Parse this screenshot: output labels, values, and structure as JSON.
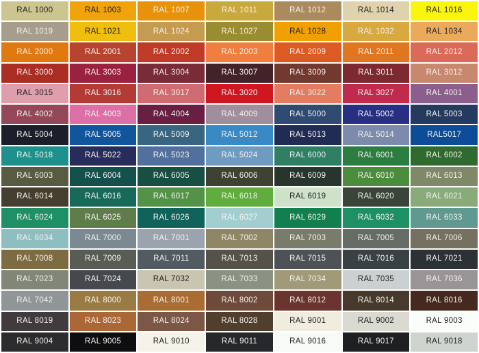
{
  "page": {
    "background": "#ffffff",
    "grid_columns": 7,
    "grid_rows": 17,
    "gap_color": "#ffffff"
  },
  "text_colors": {
    "dark": "#222222",
    "light": "#F4F2EE"
  },
  "chart_data": {
    "type": "table",
    "title": "RAL colour chart",
    "rows": [
      [
        {
          "code": "RAL 1000",
          "bg": "#CCC58F",
          "fg": "dark"
        },
        {
          "code": "RAL 1003",
          "bg": "#F0A30A",
          "fg": "dark"
        },
        {
          "code": "RAL 1007",
          "bg": "#E8920C",
          "fg": "light"
        },
        {
          "code": "RAL 1011",
          "bg": "#C9A83C",
          "fg": "light"
        },
        {
          "code": "RAL 1012",
          "bg": "#AB8A5E",
          "fg": "light"
        },
        {
          "code": "RAL 1014",
          "bg": "#DFD3AD",
          "fg": "dark"
        },
        {
          "code": "RAL 1016",
          "bg": "#FAF50C",
          "fg": "dark"
        }
      ],
      [
        {
          "code": "RAL 1019",
          "bg": "#A69D8D",
          "fg": "light"
        },
        {
          "code": "RAL 1021",
          "bg": "#F0BE0F",
          "fg": "dark"
        },
        {
          "code": "RAL 1024",
          "bg": "#C49B51",
          "fg": "light"
        },
        {
          "code": "RAL 1027",
          "bg": "#9A8C30",
          "fg": "light"
        },
        {
          "code": "RAL 1028",
          "bg": "#F0A000",
          "fg": "dark"
        },
        {
          "code": "RAL 1032",
          "bg": "#D7A93F",
          "fg": "light"
        },
        {
          "code": "RAL 1034",
          "bg": "#EBA95C",
          "fg": "dark"
        }
      ],
      [
        {
          "code": "RAL 2000",
          "bg": "#E0790F",
          "fg": "light"
        },
        {
          "code": "RAL 2001",
          "bg": "#B8432F",
          "fg": "light"
        },
        {
          "code": "RAL 2002",
          "bg": "#C03A28",
          "fg": "light"
        },
        {
          "code": "RAL 2003",
          "bg": "#F07E3F",
          "fg": "light"
        },
        {
          "code": "RAL 2009",
          "bg": "#DC5B23",
          "fg": "light"
        },
        {
          "code": "RAL 2011",
          "bg": "#E0761F",
          "fg": "light"
        },
        {
          "code": "RAL 2012",
          "bg": "#DB6A58",
          "fg": "light"
        }
      ],
      [
        {
          "code": "RAL 3000",
          "bg": "#AB2E25",
          "fg": "light"
        },
        {
          "code": "RAL 3003",
          "bg": "#9A2140",
          "fg": "light"
        },
        {
          "code": "RAL 3004",
          "bg": "#7A2B38",
          "fg": "light"
        },
        {
          "code": "RAL 3007",
          "bg": "#432329",
          "fg": "light"
        },
        {
          "code": "RAL 3009",
          "bg": "#71392F",
          "fg": "light"
        },
        {
          "code": "RAL 3011",
          "bg": "#7C2A30",
          "fg": "light"
        },
        {
          "code": "RAL 3012",
          "bg": "#C8886D",
          "fg": "light"
        }
      ],
      [
        {
          "code": "RAL 3015",
          "bg": "#DE9EAC",
          "fg": "dark"
        },
        {
          "code": "RAL 3016",
          "bg": "#B23B35",
          "fg": "light"
        },
        {
          "code": "RAL 3017",
          "bg": "#D16B72",
          "fg": "light"
        },
        {
          "code": "RAL 3020",
          "bg": "#CE1721",
          "fg": "light"
        },
        {
          "code": "RAL 3022",
          "bg": "#E37C60",
          "fg": "light"
        },
        {
          "code": "RAL 3027",
          "bg": "#C02A4D",
          "fg": "light"
        },
        {
          "code": "RAL 4001",
          "bg": "#8B5E8E",
          "fg": "light"
        }
      ],
      [
        {
          "code": "RAL 4002",
          "bg": "#944758",
          "fg": "light"
        },
        {
          "code": "RAL 4003",
          "bg": "#DC6FA6",
          "fg": "light"
        },
        {
          "code": "RAL 4004",
          "bg": "#681F43",
          "fg": "light"
        },
        {
          "code": "RAL 4009",
          "bg": "#A18E9C",
          "fg": "light"
        },
        {
          "code": "RAL 5000",
          "bg": "#2F4B71",
          "fg": "light"
        },
        {
          "code": "RAL 5002",
          "bg": "#272F85",
          "fg": "light"
        },
        {
          "code": "RAL 5003",
          "bg": "#243A5F",
          "fg": "light"
        }
      ],
      [
        {
          "code": "RAL 5004",
          "bg": "#1A1F2B",
          "fg": "light"
        },
        {
          "code": "RAL 5005",
          "bg": "#11569D",
          "fg": "light"
        },
        {
          "code": "RAL 5009",
          "bg": "#386680",
          "fg": "light"
        },
        {
          "code": "RAL 5012",
          "bg": "#3989C5",
          "fg": "light"
        },
        {
          "code": "RAL 5013",
          "bg": "#202C54",
          "fg": "light"
        },
        {
          "code": "RAL 5014",
          "bg": "#7C8BAC",
          "fg": "light"
        },
        {
          "code": "RAL5017",
          "bg": "#0D4D97",
          "fg": "light"
        }
      ],
      [
        {
          "code": "RAL 5018",
          "bg": "#1E918C",
          "fg": "light"
        },
        {
          "code": "RAL 5022",
          "bg": "#282C5A",
          "fg": "light"
        },
        {
          "code": "RAL 5023",
          "bg": "#52709D",
          "fg": "light"
        },
        {
          "code": "RAL 5024",
          "bg": "#6F9BC1",
          "fg": "light"
        },
        {
          "code": "RAL 6000",
          "bg": "#2F7F63",
          "fg": "light"
        },
        {
          "code": "RAL 6001",
          "bg": "#2B7D40",
          "fg": "light"
        },
        {
          "code": "RAL 6002",
          "bg": "#2F6A2F",
          "fg": "light"
        }
      ],
      [
        {
          "code": "RAL 6003",
          "bg": "#565B41",
          "fg": "light"
        },
        {
          "code": "RAL 6004",
          "bg": "#14504D",
          "fg": "light"
        },
        {
          "code": "RAL 6005",
          "bg": "#175043",
          "fg": "light"
        },
        {
          "code": "RAL 6006",
          "bg": "#3D4233",
          "fg": "light"
        },
        {
          "code": "RAL 6009",
          "bg": "#27352C",
          "fg": "light"
        },
        {
          "code": "RAL 6010",
          "bg": "#4C8C3D",
          "fg": "light"
        },
        {
          "code": "RAL 6013",
          "bg": "#7F8968",
          "fg": "light"
        }
      ],
      [
        {
          "code": "RAL 6014",
          "bg": "#463F2F",
          "fg": "light"
        },
        {
          "code": "RAL 6016",
          "bg": "#17695A",
          "fg": "light"
        },
        {
          "code": "RAL 6017",
          "bg": "#539348",
          "fg": "light"
        },
        {
          "code": "RAL 6018",
          "bg": "#5FAD3D",
          "fg": "light"
        },
        {
          "code": "RAL 6019",
          "bg": "#CEE1C9",
          "fg": "dark"
        },
        {
          "code": "RAL 6020",
          "bg": "#3A453A",
          "fg": "light"
        },
        {
          "code": "RAL 6021",
          "bg": "#89AB7A",
          "fg": "light"
        }
      ],
      [
        {
          "code": "RAL 6024",
          "bg": "#1F9066",
          "fg": "light"
        },
        {
          "code": "RAL 6025",
          "bg": "#5F7C4B",
          "fg": "light"
        },
        {
          "code": "RAL 6026",
          "bg": "#0F635B",
          "fg": "light"
        },
        {
          "code": "RAL 6027",
          "bg": "#A2CED0",
          "fg": "light"
        },
        {
          "code": "RAL 6029",
          "bg": "#12804E",
          "fg": "light"
        },
        {
          "code": "RAL 6032",
          "bg": "#1E9164",
          "fg": "light"
        },
        {
          "code": "RAL 6033",
          "bg": "#5F998F",
          "fg": "light"
        }
      ],
      [
        {
          "code": "RAL 6034",
          "bg": "#8FBEC1",
          "fg": "light"
        },
        {
          "code": "RAL 7000",
          "bg": "#7B8992",
          "fg": "light"
        },
        {
          "code": "RAL 7001",
          "bg": "#9AA3AE",
          "fg": "light"
        },
        {
          "code": "RAL 7002",
          "bg": "#8E8665",
          "fg": "light"
        },
        {
          "code": "RAL 7003",
          "bg": "#797C6A",
          "fg": "light"
        },
        {
          "code": "RAL 7005",
          "bg": "#656C63",
          "fg": "light"
        },
        {
          "code": "RAL 7006",
          "bg": "#75705F",
          "fg": "light"
        }
      ],
      [
        {
          "code": "RAL 7008",
          "bg": "#7D6B42",
          "fg": "light"
        },
        {
          "code": "RAL 7009",
          "bg": "#575C54",
          "fg": "light"
        },
        {
          "code": "RAL 7011",
          "bg": "#525A62",
          "fg": "light"
        },
        {
          "code": "RAL 7013",
          "bg": "#555349",
          "fg": "light"
        },
        {
          "code": "RAL 7015",
          "bg": "#4E5257",
          "fg": "light"
        },
        {
          "code": "RAL 7016",
          "bg": "#3A4145",
          "fg": "light"
        },
        {
          "code": "RAL 7021",
          "bg": "#2B3135",
          "fg": "light"
        }
      ],
      [
        {
          "code": "RAL 7023",
          "bg": "#818677",
          "fg": "light"
        },
        {
          "code": "RAL 7024",
          "bg": "#45494E",
          "fg": "light"
        },
        {
          "code": "RAL 7032",
          "bg": "#CAC5B0",
          "fg": "dark"
        },
        {
          "code": "RAL 7033",
          "bg": "#899283",
          "fg": "light"
        },
        {
          "code": "RAL 7034",
          "bg": "#A19977",
          "fg": "light"
        },
        {
          "code": "RAL 7035",
          "bg": "#CBD1D3",
          "fg": "dark"
        },
        {
          "code": "RAL 7036",
          "bg": "#999596",
          "fg": "light"
        }
      ],
      [
        {
          "code": "RAL 7042",
          "bg": "#8F9697",
          "fg": "light"
        },
        {
          "code": "RAL 8000",
          "bg": "#9B7B44",
          "fg": "light"
        },
        {
          "code": "RAL 8001",
          "bg": "#A96D34",
          "fg": "light"
        },
        {
          "code": "RAL 8002",
          "bg": "#6E4A3B",
          "fg": "light"
        },
        {
          "code": "RAL 8012",
          "bg": "#6C342F",
          "fg": "light"
        },
        {
          "code": "RAL 8014",
          "bg": "#473A2D",
          "fg": "light"
        },
        {
          "code": "RAL 8016",
          "bg": "#45291E",
          "fg": "light"
        }
      ],
      [
        {
          "code": "RAL 8019",
          "bg": "#423B3D",
          "fg": "light"
        },
        {
          "code": "RAL 8023",
          "bg": "#AB6836",
          "fg": "light"
        },
        {
          "code": "RAL 8024",
          "bg": "#7C5745",
          "fg": "light"
        },
        {
          "code": "RAL 8028",
          "bg": "#513F2E",
          "fg": "light"
        },
        {
          "code": "RAL 9001",
          "bg": "#F0ECDE",
          "fg": "dark"
        },
        {
          "code": "RAL 9002",
          "bg": "#DBDAD1",
          "fg": "dark"
        },
        {
          "code": "RAL 9003",
          "bg": "#FBFDFA",
          "fg": "dark"
        }
      ],
      [
        {
          "code": "RAL 9004",
          "bg": "#2C2C2E",
          "fg": "light"
        },
        {
          "code": "RAL 9005",
          "bg": "#0E0E10",
          "fg": "light"
        },
        {
          "code": "RAL 9010",
          "bg": "#F5F2E9",
          "fg": "dark"
        },
        {
          "code": "RAL 9011",
          "bg": "#26282B",
          "fg": "light"
        },
        {
          "code": "RAL 9016",
          "bg": "#F8FAF7",
          "fg": "dark"
        },
        {
          "code": "RAL 9017",
          "bg": "#1E2022",
          "fg": "light"
        },
        {
          "code": "RAL 9018",
          "bg": "#CED4CE",
          "fg": "dark"
        }
      ]
    ]
  }
}
